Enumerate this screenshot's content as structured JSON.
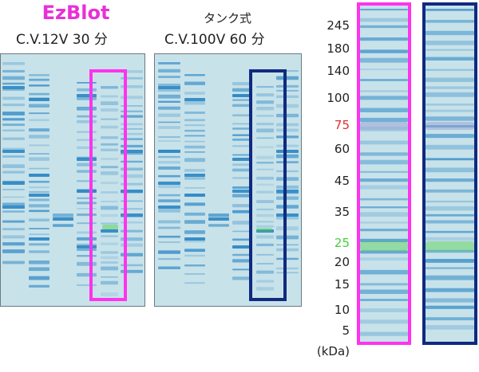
{
  "left_panel": {
    "title": "EzBlot",
    "title_color": "#e830d8",
    "condition": "C.V.12V 30 分"
  },
  "middle_panel": {
    "title": "タンク式",
    "condition": "C.V.100V 60 分"
  },
  "colors": {
    "highlight_magenta": "#ff33ee",
    "highlight_navy": "#102a80",
    "marker_75": "#e03030",
    "marker_25": "#44d03a",
    "blot_background": "#c8e2ea",
    "band": "#2a86c4"
  },
  "markers": {
    "unit": "(kDa)",
    "labels": [
      "245",
      "180",
      "140",
      "100",
      "75",
      "60",
      "45",
      "35",
      "25",
      "20",
      "15",
      "10",
      "5"
    ]
  }
}
